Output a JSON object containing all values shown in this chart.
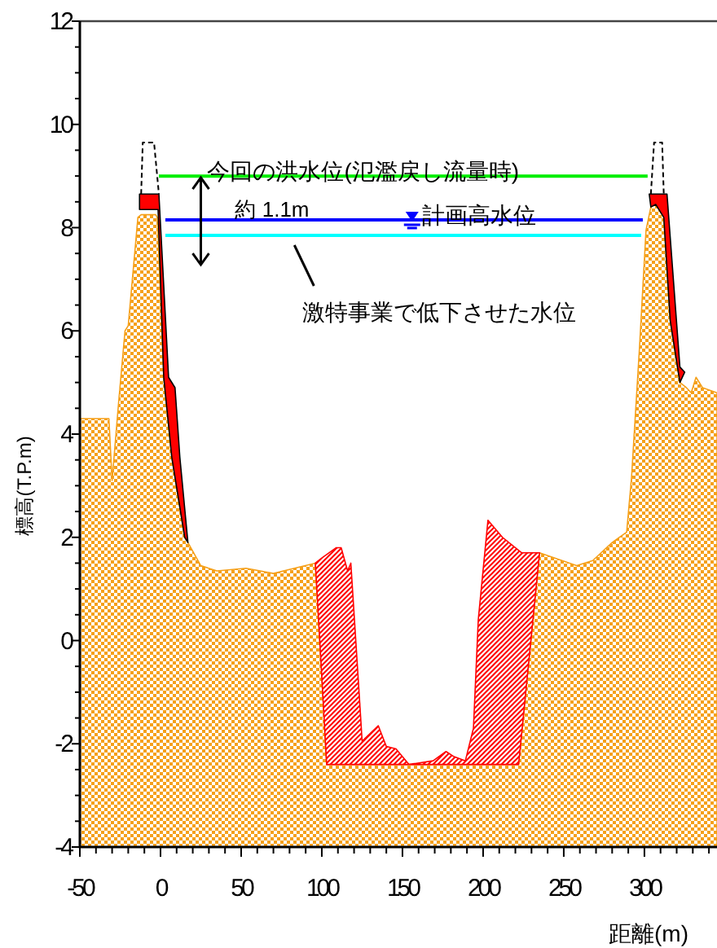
{
  "chart_data": {
    "type": "area",
    "xlabel": "距離(m)",
    "ylabel": "標高(T.P.m)",
    "xlim": [
      -50,
      345
    ],
    "ylim": [
      -4,
      12
    ],
    "xticks": [
      -50,
      {
        "value": -40,
        "label": null
      },
      {
        "value": -30,
        "label": null
      },
      {
        "value": -20,
        "label": null
      },
      {
        "value": -10,
        "label": null
      },
      0,
      {
        "value": 10,
        "label": null
      },
      {
        "value": 20,
        "label": null
      },
      {
        "value": 30,
        "label": null
      },
      {
        "value": 40,
        "label": null
      },
      50,
      {
        "value": 60,
        "label": null
      },
      {
        "value": 70,
        "label": null
      },
      {
        "value": 80,
        "label": null
      },
      {
        "value": 90,
        "label": null
      },
      100,
      {
        "value": 110,
        "label": null
      },
      {
        "value": 120,
        "label": null
      },
      {
        "value": 130,
        "label": null
      },
      {
        "value": 140,
        "label": null
      },
      150,
      {
        "value": 160,
        "label": null
      },
      {
        "value": 170,
        "label": null
      },
      {
        "value": 180,
        "label": null
      },
      {
        "value": 190,
        "label": null
      },
      200,
      {
        "value": 210,
        "label": null
      },
      {
        "value": 220,
        "label": null
      },
      {
        "value": 230,
        "label": null
      },
      {
        "value": 240,
        "label": null
      },
      250,
      {
        "value": 260,
        "label": null
      },
      {
        "value": 270,
        "label": null
      },
      {
        "value": 280,
        "label": null
      },
      {
        "value": 290,
        "label": null
      },
      300,
      {
        "value": 310,
        "label": null
      },
      {
        "value": 320,
        "label": null
      },
      {
        "value": 330,
        "label": null
      },
      {
        "value": 340,
        "label": null
      }
    ],
    "yticks": [
      -4,
      {
        "value": -3.5,
        "label": null
      },
      {
        "value": -3,
        "label": null
      },
      {
        "value": -2.5,
        "label": null
      },
      -2,
      {
        "value": -1.5,
        "label": null
      },
      {
        "value": -1,
        "label": null
      },
      {
        "value": -0.5,
        "label": null
      },
      0,
      {
        "value": 0.5,
        "label": null
      },
      {
        "value": 1,
        "label": null
      },
      {
        "value": 1.5,
        "label": null
      },
      2,
      {
        "value": 2.5,
        "label": null
      },
      {
        "value": 3,
        "label": null
      },
      {
        "value": 3.5,
        "label": null
      },
      4,
      {
        "value": 4.5,
        "label": null
      },
      {
        "value": 5,
        "label": null
      },
      {
        "value": 5.5,
        "label": null
      },
      6,
      {
        "value": 6.5,
        "label": null
      },
      {
        "value": 7,
        "label": null
      },
      {
        "value": 7.5,
        "label": null
      },
      8,
      {
        "value": 8.5,
        "label": null
      },
      {
        "value": 9,
        "label": null
      },
      {
        "value": 9.5,
        "label": null
      },
      10,
      {
        "value": 10.5,
        "label": null
      },
      {
        "value": 11,
        "label": null
      },
      {
        "value": 11.5,
        "label": null
      },
      12
    ],
    "grid": false,
    "series": [
      {
        "color": "#f5a01a",
        "x": [
          -50,
          -50,
          -32,
          -30,
          -26,
          -22,
          -20,
          -14,
          -12,
          -3,
          -2,
          2,
          7,
          15,
          17,
          25,
          35,
          53,
          70,
          83,
          96,
          100,
          103,
          222,
          235,
          258,
          268,
          280,
          289,
          292,
          297,
          301,
          304,
          307,
          312,
          316,
          322,
          326,
          329,
          332,
          336,
          345,
          345
        ],
        "values": [
          -4,
          4.3,
          4.3,
          3.1,
          4.6,
          6.0,
          6.1,
          8.2,
          8.25,
          8.25,
          8.2,
          5.1,
          3.55,
          2.0,
          1.9,
          1.45,
          1.35,
          1.4,
          1.3,
          1.4,
          1.5,
          -0.7,
          -2.4,
          -2.4,
          1.7,
          1.45,
          1.55,
          1.9,
          2.1,
          3.15,
          5.7,
          7.95,
          8.4,
          8.45,
          8.2,
          6.2,
          5.0,
          4.9,
          4.8,
          5.1,
          4.9,
          4.8,
          -4
        ]
      },
      {
        "color": "#ff0000",
        "x": [
          96,
          100,
          109,
          112,
          116,
          118,
          123,
          125,
          135,
          140,
          146,
          154,
          169,
          177,
          182,
          189,
          194,
          197,
          203,
          212,
          224,
          235,
          222,
          103,
          100
        ],
        "values": [
          1.5,
          1.6,
          1.8,
          1.8,
          1.35,
          1.5,
          -0.95,
          -1.95,
          -1.65,
          -2.05,
          -2.1,
          -2.4,
          -2.33,
          -2.15,
          -2.25,
          -2.33,
          -1.7,
          0.4,
          2.33,
          2.0,
          1.7,
          1.7,
          -2.4,
          -2.4,
          -0.7
        ]
      },
      {
        "color": "#ff0000",
        "x": [
          -13,
          -13,
          -1,
          5,
          9,
          12,
          17,
          15,
          7,
          2,
          -1.5
        ],
        "values": [
          8.35,
          8.65,
          8.65,
          5.1,
          4.9,
          3.55,
          1.9,
          2.0,
          3.55,
          5.1,
          8.35
        ]
      },
      {
        "color": "#ff0000",
        "x": [
          303,
          314,
          322,
          325,
          322,
          316,
          312,
          307,
          304
        ],
        "values": [
          8.65,
          8.65,
          5.3,
          5.2,
          5.0,
          6.2,
          8.2,
          8.45,
          8.4
        ]
      },
      {
        "type": "line",
        "color": "#000000",
        "line_style": "dashed",
        "x": [
          -12,
          -11,
          -4,
          -1
        ],
        "values": [
          8.65,
          9.65,
          9.65,
          8.65
        ]
      },
      {
        "type": "line",
        "color": "#000000",
        "line_style": "dashed",
        "x": [
          304,
          306,
          311,
          312
        ],
        "values": [
          8.65,
          9.65,
          9.65,
          8.65
        ]
      },
      {
        "type": "line",
        "color": "#00ee00",
        "line_style": "solid",
        "x": [
          -1,
          302
        ],
        "values": [
          9.0,
          9.0
        ]
      },
      {
        "type": "line",
        "color": "#0000ff",
        "line_style": "solid",
        "x": [
          3,
          299
        ],
        "values": [
          8.15,
          8.15
        ]
      },
      {
        "type": "line",
        "color": "#00ffff",
        "line_style": "solid",
        "x": [
          3,
          298
        ],
        "values": [
          7.85,
          7.85
        ]
      }
    ],
    "annotations": [
      {
        "text": "今回の洪水位(氾濫戻し流量時)",
        "x": 29,
        "y": 9.0
      },
      {
        "text": "約 1.1m",
        "x": 25,
        "y": 8.15
      },
      {
        "text": "計画高水位",
        "x": 159,
        "y": 8.15
      },
      {
        "text": "激特事業で低下させた水位",
        "x": 83,
        "y": 7.85
      }
    ]
  }
}
